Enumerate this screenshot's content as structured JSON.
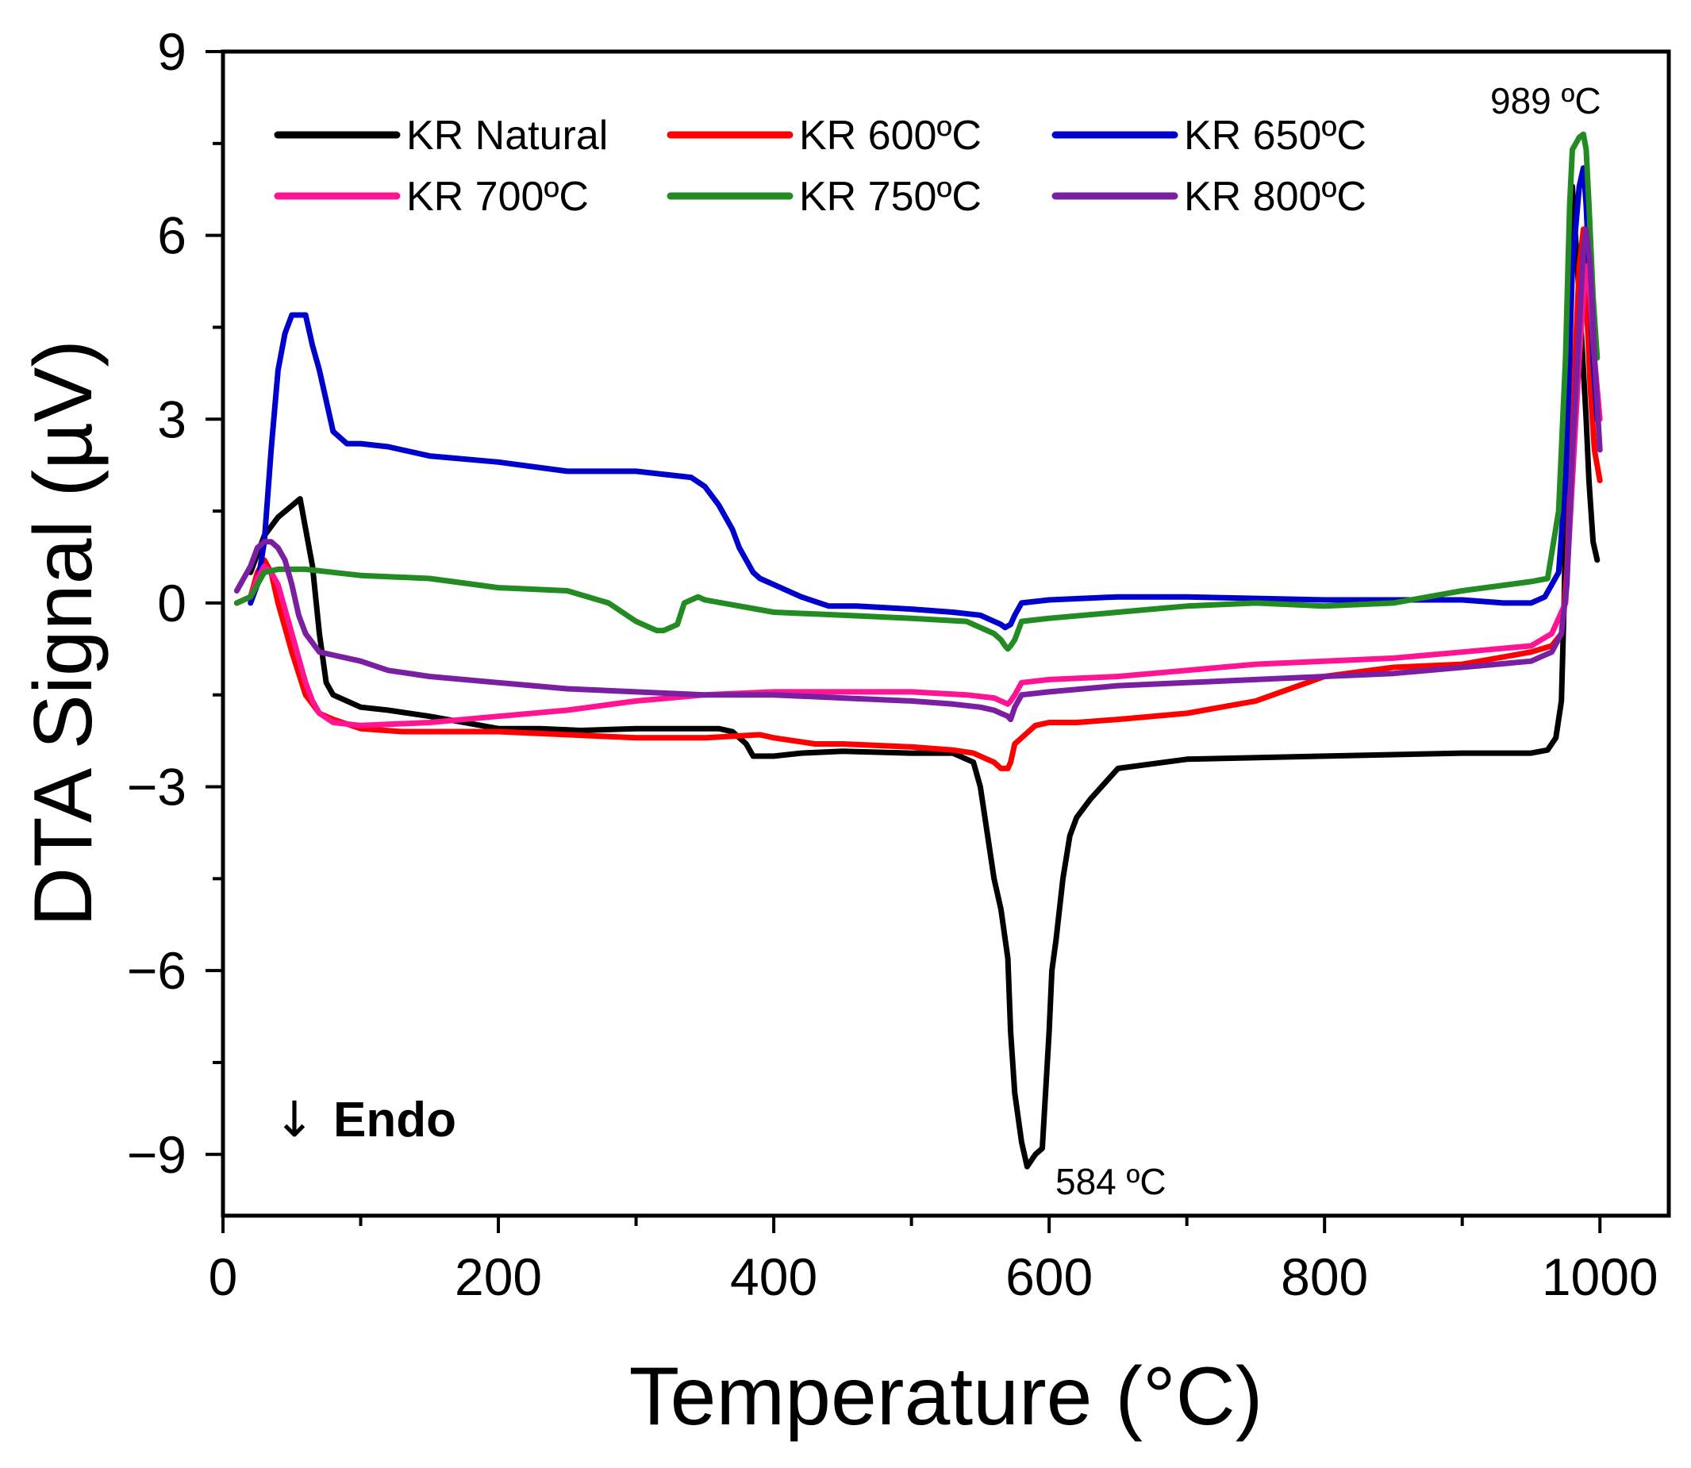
{
  "chart_data": {
    "type": "line",
    "xlabel": "Temperature (°C)",
    "ylabel": "DTA Signal (µV)",
    "xlim": [
      0,
      1050
    ],
    "ylim": [
      -10,
      9
    ],
    "xticks": [
      "0",
      "200",
      "400",
      "600",
      "800",
      "1000"
    ],
    "yticks": [
      "−9",
      "−6",
      "−3",
      "0",
      "3",
      "6",
      "9"
    ],
    "grid": false,
    "legend_position": "top",
    "annotations": [
      {
        "text": "989 ºC",
        "x": 989,
        "y": 7.7
      },
      {
        "text": "584 ºC",
        "x": 584,
        "y": -9.2
      },
      {
        "text": "↓",
        "x": 50,
        "y": -8.2
      },
      {
        "text": "Endo",
        "x": 80,
        "y": -8.2
      }
    ],
    "series": [
      {
        "name": "KR Natural",
        "color": "#000000",
        "x": [
          20,
          30,
          40,
          56,
          65,
          70,
          75,
          80,
          90,
          100,
          120,
          150,
          200,
          230,
          260,
          300,
          340,
          360,
          370,
          380,
          385,
          400,
          420,
          450,
          500,
          530,
          545,
          550,
          560,
          565,
          570,
          572,
          575,
          580,
          584,
          590,
          595,
          600,
          602,
          605,
          610,
          615,
          620,
          630,
          650,
          700,
          800,
          900,
          950,
          962,
          968,
          972,
          974,
          976,
          978,
          980,
          985,
          990,
          992,
          995,
          998
        ],
        "y": [
          0.5,
          1.1,
          1.4,
          1.7,
          0.6,
          -0.5,
          -1.3,
          -1.5,
          -1.6,
          -1.7,
          -1.75,
          -1.85,
          -2.05,
          -2.05,
          -2.08,
          -2.05,
          -2.05,
          -2.05,
          -2.1,
          -2.3,
          -2.5,
          -2.5,
          -2.45,
          -2.42,
          -2.45,
          -2.45,
          -2.6,
          -3.0,
          -4.5,
          -5.0,
          -5.8,
          -7.0,
          -8.0,
          -8.8,
          -9.2,
          -9.0,
          -8.9,
          -7.0,
          -6.0,
          -5.5,
          -4.5,
          -3.8,
          -3.5,
          -3.2,
          -2.7,
          -2.55,
          -2.5,
          -2.45,
          -2.45,
          -2.4,
          -2.2,
          -1.6,
          0.0,
          2.5,
          5.0,
          6.8,
          5.0,
          3.0,
          2.0,
          1.0,
          0.7
        ]
      },
      {
        "name": "KR 600ºC",
        "color": "#ff0000",
        "x": [
          10,
          20,
          25,
          30,
          35,
          40,
          50,
          60,
          70,
          80,
          100,
          130,
          200,
          250,
          300,
          350,
          390,
          400,
          430,
          450,
          500,
          530,
          545,
          555,
          560,
          565,
          570,
          572,
          575,
          580,
          590,
          600,
          620,
          650,
          700,
          750,
          800,
          850,
          900,
          950,
          965,
          972,
          976,
          980,
          985,
          988,
          990,
          993,
          996,
          1000
        ],
        "y": [
          0.0,
          0.1,
          0.5,
          0.7,
          0.5,
          0.0,
          -0.8,
          -1.5,
          -1.8,
          -1.9,
          -2.05,
          -2.1,
          -2.1,
          -2.15,
          -2.2,
          -2.2,
          -2.15,
          -2.2,
          -2.3,
          -2.3,
          -2.35,
          -2.4,
          -2.45,
          -2.55,
          -2.6,
          -2.7,
          -2.7,
          -2.6,
          -2.3,
          -2.2,
          -2.0,
          -1.95,
          -1.95,
          -1.9,
          -1.8,
          -1.6,
          -1.2,
          -1.05,
          -1.0,
          -0.8,
          -0.7,
          -0.5,
          0.5,
          3.0,
          5.5,
          6.1,
          5.0,
          3.5,
          2.5,
          2.0
        ]
      },
      {
        "name": "KR 650ºC",
        "color": "#0000cc",
        "x": [
          20,
          25,
          30,
          35,
          40,
          45,
          50,
          55,
          60,
          62,
          65,
          70,
          80,
          90,
          100,
          120,
          150,
          200,
          250,
          300,
          340,
          350,
          360,
          370,
          375,
          380,
          385,
          390,
          400,
          420,
          440,
          460,
          500,
          530,
          550,
          560,
          565,
          568,
          572,
          575,
          580,
          600,
          650,
          700,
          800,
          900,
          930,
          950,
          960,
          970,
          975,
          978,
          980,
          985,
          988,
          990,
          992,
          995,
          998
        ],
        "y": [
          0.0,
          0.3,
          1.0,
          2.5,
          3.8,
          4.4,
          4.7,
          4.7,
          4.7,
          4.5,
          4.2,
          3.8,
          2.8,
          2.6,
          2.6,
          2.55,
          2.4,
          2.3,
          2.15,
          2.15,
          2.05,
          1.9,
          1.6,
          1.2,
          0.9,
          0.7,
          0.5,
          0.4,
          0.3,
          0.1,
          -0.05,
          -0.05,
          -0.1,
          -0.15,
          -0.2,
          -0.3,
          -0.35,
          -0.4,
          -0.35,
          -0.2,
          0.0,
          0.05,
          0.1,
          0.1,
          0.05,
          0.05,
          0.0,
          0.0,
          0.1,
          0.5,
          2.0,
          4.0,
          5.5,
          6.8,
          7.1,
          6.5,
          5.5,
          4.0,
          3.0
        ]
      },
      {
        "name": "KR 700ºC",
        "color": "#ff1493",
        "x": [
          10,
          20,
          25,
          30,
          35,
          40,
          50,
          60,
          65,
          70,
          80,
          100,
          150,
          200,
          250,
          300,
          350,
          400,
          450,
          500,
          540,
          560,
          565,
          570,
          572,
          575,
          580,
          600,
          650,
          700,
          750,
          800,
          850,
          900,
          950,
          965,
          975,
          980,
          985,
          988,
          990,
          993,
          996,
          1000
        ],
        "y": [
          0.0,
          0.1,
          0.4,
          0.6,
          0.5,
          0.3,
          -0.5,
          -1.3,
          -1.6,
          -1.8,
          -1.95,
          -2.0,
          -1.95,
          -1.85,
          -1.75,
          -1.6,
          -1.5,
          -1.45,
          -1.45,
          -1.45,
          -1.5,
          -1.55,
          -1.6,
          -1.65,
          -1.6,
          -1.5,
          -1.3,
          -1.25,
          -1.2,
          -1.1,
          -1.0,
          -0.95,
          -0.9,
          -0.8,
          -0.7,
          -0.5,
          0.0,
          2.0,
          4.0,
          5.0,
          5.5,
          5.0,
          4.0,
          3.0
        ]
      },
      {
        "name": "KR 750ºC",
        "color": "#228b22",
        "x": [
          10,
          20,
          25,
          30,
          40,
          60,
          80,
          100,
          150,
          200,
          250,
          280,
          300,
          310,
          315,
          320,
          325,
          330,
          335,
          340,
          345,
          350,
          400,
          450,
          500,
          540,
          560,
          565,
          568,
          570,
          572,
          575,
          580,
          600,
          650,
          700,
          750,
          800,
          850,
          900,
          950,
          962,
          970,
          975,
          978,
          980,
          985,
          988,
          990,
          992,
          995,
          998
        ],
        "y": [
          0.0,
          0.1,
          0.3,
          0.5,
          0.55,
          0.55,
          0.5,
          0.45,
          0.4,
          0.25,
          0.2,
          0.0,
          -0.3,
          -0.4,
          -0.45,
          -0.45,
          -0.4,
          -0.35,
          0.0,
          0.05,
          0.1,
          0.05,
          -0.15,
          -0.2,
          -0.25,
          -0.3,
          -0.5,
          -0.6,
          -0.7,
          -0.75,
          -0.7,
          -0.6,
          -0.3,
          -0.25,
          -0.15,
          -0.05,
          0.0,
          -0.05,
          0.0,
          0.2,
          0.35,
          0.4,
          1.5,
          4.0,
          6.5,
          7.4,
          7.6,
          7.65,
          7.4,
          6.5,
          5.0,
          4.0
        ]
      },
      {
        "name": "KR 800ºC",
        "color": "#7b1fa2",
        "x": [
          10,
          20,
          25,
          30,
          35,
          40,
          45,
          50,
          55,
          60,
          70,
          80,
          100,
          120,
          150,
          200,
          250,
          300,
          350,
          400,
          450,
          500,
          530,
          550,
          560,
          565,
          570,
          572,
          575,
          580,
          600,
          650,
          700,
          750,
          800,
          850,
          900,
          950,
          965,
          972,
          976,
          980,
          985,
          988,
          990,
          993,
          996,
          1000
        ],
        "y": [
          0.2,
          0.6,
          0.9,
          1.0,
          1.0,
          0.9,
          0.7,
          0.3,
          -0.2,
          -0.5,
          -0.8,
          -0.85,
          -0.95,
          -1.1,
          -1.2,
          -1.3,
          -1.4,
          -1.45,
          -1.5,
          -1.5,
          -1.55,
          -1.6,
          -1.65,
          -1.7,
          -1.75,
          -1.8,
          -1.85,
          -1.9,
          -1.7,
          -1.5,
          -1.45,
          -1.35,
          -1.3,
          -1.25,
          -1.2,
          -1.15,
          -1.05,
          -0.95,
          -0.8,
          -0.5,
          0.3,
          2.5,
          4.5,
          5.8,
          6.1,
          5.5,
          4.0,
          2.5
        ]
      }
    ]
  }
}
